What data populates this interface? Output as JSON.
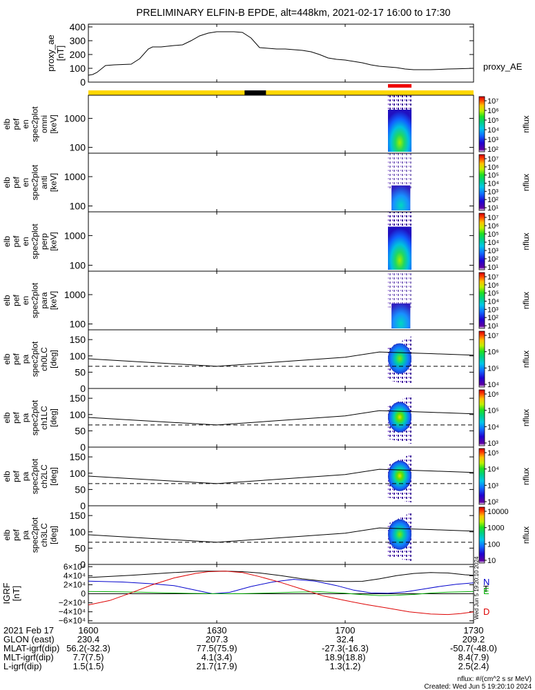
{
  "chart_data": {
    "type": "multi-panel spectrogram",
    "title": "PRELIMINARY ELFIN-B EPDE, alt=448km, 2021-02-17 16:00 to 17:30",
    "time_range_min": [
      0,
      90
    ],
    "time_ticks": [
      "1600",
      "1630",
      "1700",
      "1730"
    ],
    "time_tick_minutes": [
      0,
      30,
      60,
      90
    ],
    "panels": [
      {
        "id": "proxy_ae",
        "type": "line",
        "ylabel": [
          "proxy_ae",
          "[nT]"
        ],
        "legend": "proxy_AE",
        "ylim": [
          0,
          420
        ],
        "yticks": [
          0,
          100,
          200,
          300,
          400
        ],
        "yticklabels": [
          "0",
          "100",
          "200",
          "300",
          "400"
        ],
        "x": [
          0,
          1,
          2,
          4,
          6,
          10,
          12,
          14,
          15,
          17,
          20,
          22,
          24,
          26,
          28,
          30,
          32,
          34,
          36,
          38,
          40,
          42,
          44,
          46,
          48,
          50,
          52,
          54,
          56,
          58,
          60,
          62,
          64,
          66,
          68,
          70,
          72,
          74,
          76,
          78,
          80,
          82,
          84,
          86,
          88,
          90
        ],
        "y": [
          50,
          55,
          70,
          120,
          125,
          130,
          170,
          240,
          255,
          255,
          265,
          270,
          300,
          335,
          355,
          365,
          365,
          365,
          360,
          320,
          250,
          245,
          240,
          240,
          235,
          230,
          220,
          200,
          175,
          165,
          160,
          150,
          140,
          125,
          115,
          110,
          105,
          95,
          90,
          90,
          90,
          92,
          95,
          96,
          98,
          100
        ]
      },
      {
        "id": "en_omni",
        "type": "spectrogram",
        "ylabel": [
          "elb",
          "pef",
          "en",
          "spec2plot",
          "omni",
          "[keV]"
        ],
        "yticklabels": [
          "100",
          "1000"
        ],
        "zlabel": "nflux",
        "zticklabels": [
          "10²",
          "10³",
          "10⁴",
          "10⁵",
          "10⁶",
          "10⁷"
        ]
      },
      {
        "id": "en_anti",
        "type": "spectrogram",
        "ylabel": [
          "elb",
          "pef",
          "en",
          "spec2plot",
          "anti",
          "[keV]"
        ],
        "yticklabels": [
          "100",
          "1000"
        ],
        "zlabel": "nflux",
        "zticklabels": [
          "10¹",
          "10²",
          "10³",
          "10⁴",
          "10⁵",
          "10⁶",
          "10⁷"
        ]
      },
      {
        "id": "en_perp",
        "type": "spectrogram",
        "ylabel": [
          "elb",
          "pef",
          "en",
          "spec2plot",
          "perp",
          "[keV]"
        ],
        "yticklabels": [
          "100",
          "1000"
        ],
        "zlabel": "nflux",
        "zticklabels": [
          "10¹",
          "10²",
          "10³",
          "10⁴",
          "10⁵",
          "10⁶",
          "10⁷"
        ]
      },
      {
        "id": "en_para",
        "type": "spectrogram",
        "ylabel": [
          "elb",
          "pef",
          "en",
          "spec2plot",
          "para",
          "[keV]"
        ],
        "yticklabels": [
          "100",
          "1000"
        ],
        "zlabel": "nflux",
        "zticklabels": [
          "10¹",
          "10²",
          "10³",
          "10⁴",
          "10⁵",
          "10⁶",
          "10⁷"
        ]
      },
      {
        "id": "pa_ch0LC",
        "type": "pitch-angle",
        "ylabel": [
          "elb",
          "pef",
          "pa",
          "spec2plot",
          "ch0LC",
          "[deg]"
        ],
        "yticklabels": [
          "0",
          "50",
          "100",
          "150"
        ],
        "zlabel": "nflux",
        "zticklabels": [
          "10⁴",
          "10⁵",
          "10⁶",
          "10⁷"
        ]
      },
      {
        "id": "pa_ch1LC",
        "type": "pitch-angle",
        "ylabel": [
          "elb",
          "pef",
          "pa",
          "spec2plot",
          "ch1LC",
          "[deg]"
        ],
        "yticklabels": [
          "0",
          "50",
          "100",
          "150"
        ],
        "zlabel": "nflux",
        "zticklabels": [
          "10³",
          "10⁴",
          "10⁵",
          "10⁶"
        ]
      },
      {
        "id": "pa_ch2LC",
        "type": "pitch-angle",
        "ylabel": [
          "elb",
          "pef",
          "pa",
          "spec2plot",
          "ch2LC",
          "[deg]"
        ],
        "yticklabels": [
          "0",
          "50",
          "100",
          "150"
        ],
        "zlabel": "nflux",
        "zticklabels": [
          "10²",
          "10³",
          "10⁴",
          "10⁵"
        ]
      },
      {
        "id": "pa_ch3LC",
        "type": "pitch-angle",
        "ylabel": [
          "elb",
          "pef",
          "pa",
          "spec2plot",
          "ch3LC",
          "[deg]"
        ],
        "yticklabels": [
          "0",
          "50",
          "100",
          "150"
        ],
        "zlabel": "nflux",
        "zticklabels": [
          "10",
          "100",
          "1000",
          "10000"
        ]
      },
      {
        "id": "igrf",
        "type": "line",
        "ylabel": [
          "IGRF",
          "[nT]"
        ],
        "ylim": [
          -65000,
          65000
        ],
        "yticks": [
          -60000,
          -40000,
          -20000,
          0,
          20000,
          40000,
          60000
        ],
        "yticklabels": [
          "−6×10⁴",
          "−4×10⁴",
          "−2×10⁴",
          "0",
          "2×10⁴",
          "4×10⁴",
          "6×10⁴"
        ],
        "series": [
          {
            "name": "T",
            "color": "#000000",
            "x": [
              0,
              10,
              20,
              26,
              32,
              36,
              40,
              45,
              50,
              55,
              60,
              64,
              68,
              72,
              76,
              80,
              84,
              88,
              90
            ],
            "y": [
              36000,
              41000,
              47000,
              50000,
              50000,
              49000,
              46000,
              40000,
              33000,
              28000,
              27000,
              27500,
              33000,
              40000,
              45000,
              47000,
              46000,
              42000,
              41000
            ]
          },
          {
            "name": "N",
            "color": "#0000cc",
            "x": [
              0,
              8,
              15,
              20,
              25,
              29,
              33,
              38,
              43,
              48,
              53,
              58,
              62,
              66,
              70,
              74,
              78,
              82,
              86,
              90
            ],
            "y": [
              28000,
              26000,
              22000,
              18000,
              8000,
              0,
              3000,
              16000,
              26000,
              32000,
              28000,
              18000,
              8000,
              2000,
              1000,
              4000,
              10000,
              16000,
              21000,
              24000
            ]
          },
          {
            "name": "E",
            "color": "#00b000",
            "x": [
              0,
              6,
              12,
              18,
              24,
              30,
              36,
              42,
              48,
              54,
              60,
              64,
              68,
              72,
              76,
              80,
              84,
              88,
              90
            ],
            "y": [
              5000,
              4500,
              3500,
              2000,
              800,
              0,
              200,
              1500,
              3500,
              4500,
              1000,
              -2000,
              -4000,
              -3500,
              -1500,
              1500,
              3500,
              4500,
              5000
            ]
          },
          {
            "name": "D",
            "color": "#dd0000",
            "x": [
              0,
              5,
              10,
              15,
              20,
              25,
              28,
              32,
              36,
              40,
              45,
              50,
              55,
              60,
              65,
              70,
              75,
              80,
              84,
              87,
              90
            ],
            "y": [
              -25000,
              -15000,
              2000,
              20000,
              35000,
              45000,
              49000,
              50000,
              47000,
              38000,
              25000,
              10000,
              -5000,
              -15000,
              -24000,
              -32000,
              -40000,
              -45000,
              -46000,
              -44000,
              -40000
            ]
          }
        ]
      }
    ],
    "status_bars": {
      "background_color": "#ffd700",
      "black_span_min": [
        36.5,
        41.5
      ],
      "red_span_min": [
        70,
        75.5
      ]
    },
    "pa_reference_lines_deg": {
      "solid": {
        "x": [
          0,
          30,
          60,
          68,
          80,
          90
        ],
        "y": [
          91,
          68,
          96,
          112,
          107,
          102
        ]
      },
      "dashed": 68
    },
    "particle_burst_min": [
      70,
      75.5
    ]
  },
  "footer": {
    "rows": [
      {
        "label": "2021 Feb 17",
        "values": [
          "1600",
          "1630",
          "1700",
          "1730"
        ]
      },
      {
        "label": "GLON (east)",
        "values": [
          "230.4",
          "207.3",
          "32.4",
          "209.2"
        ]
      },
      {
        "label": "MLAT-igrf(dip)",
        "values": [
          "56.2(-32.3)",
          "77.5(75.9)",
          "-27.3(-16.3)",
          "-50.7(-48.0)"
        ]
      },
      {
        "label": "MLT-igrf(dip)",
        "values": [
          "7.7(7.5)",
          "4.1(3.4)",
          "18.9(18.8)",
          "8.4(7.9)"
        ]
      },
      {
        "label": "L-igrf(dip)",
        "values": [
          "1.5(1.5)",
          "21.7(17.9)",
          "1.3(1.2)",
          "2.5(2.4)"
        ]
      }
    ],
    "units_note": "nflux: #/(cm^2 s sr MeV)",
    "created": "Created: Wed Jun  5 19:20:10 2024",
    "side_stamp": "Wed Jun  5 19:20:10 2024"
  }
}
